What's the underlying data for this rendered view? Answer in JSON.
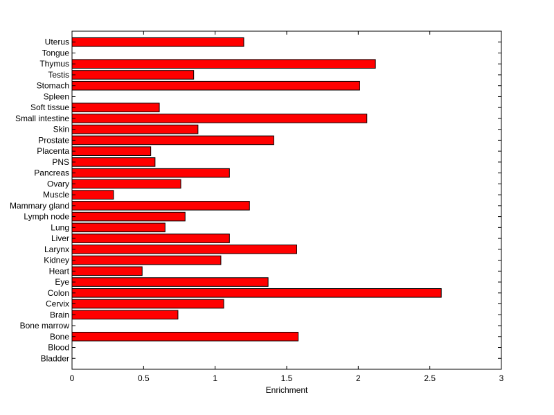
{
  "chart_data": {
    "type": "bar",
    "orientation": "horizontal",
    "title": "",
    "xlabel": "Enrichment",
    "ylabel": "",
    "xlim": [
      0,
      3
    ],
    "xticks": [
      "0",
      "0.5",
      "1",
      "1.5",
      "2",
      "2.5",
      "3"
    ],
    "grid": false,
    "legend": "none",
    "bar_color": "#ff0000",
    "bar_edge_color": "#000000",
    "categories": [
      "Bladder",
      "Blood",
      "Bone",
      "Bone marrow",
      "Brain",
      "Cervix",
      "Colon",
      "Eye",
      "Heart",
      "Kidney",
      "Larynx",
      "Liver",
      "Lung",
      "Lymph node",
      "Mammary gland",
      "Muscle",
      "Ovary",
      "Pancreas",
      "PNS",
      "Placenta",
      "Prostate",
      "Skin",
      "Small intestine",
      "Soft tissue",
      "Spleen",
      "Stomach",
      "Testis",
      "Thymus",
      "Tongue",
      "Uterus"
    ],
    "values": [
      0,
      0,
      1.58,
      0,
      0.74,
      1.06,
      2.58,
      1.37,
      0.49,
      1.04,
      1.57,
      1.1,
      0.65,
      0.79,
      1.24,
      0.29,
      0.76,
      1.1,
      0.58,
      0.55,
      1.41,
      0.88,
      2.06,
      0.61,
      0,
      2.01,
      0.85,
      2.12,
      0,
      1.2
    ]
  }
}
